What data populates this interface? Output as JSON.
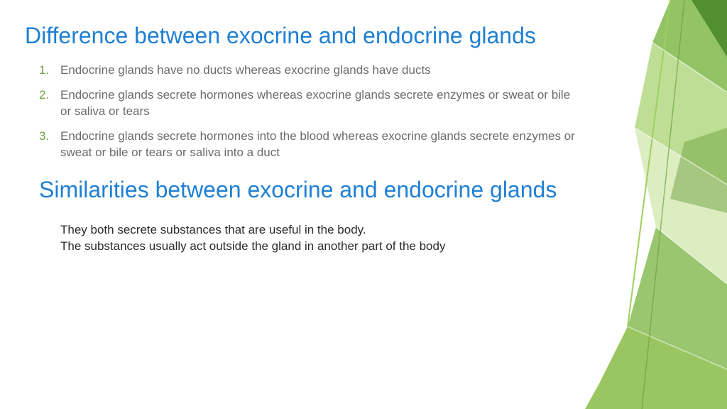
{
  "colors": {
    "title": "#1f7fd4",
    "list_number": "#6fa13e",
    "list_text": "#6b6b6b",
    "body_text": "#2b2b2b",
    "bg": "#ffffff",
    "deco_dark_green": "#4a8a2a",
    "deco_mid_green": "#7fb84a",
    "deco_light_green": "#a8d373",
    "deco_pale_green": "#cde6a8",
    "deco_line_green": "#9ecf5e"
  },
  "title1": "Difference between exocrine and endocrine glands",
  "differences": [
    "Endocrine glands have no ducts whereas exocrine glands have ducts",
    "Endocrine glands secrete hormones whereas exocrine glands secrete enzymes or sweat or bile or saliva or tears",
    "Endocrine glands secrete hormones into the blood whereas exocrine glands secrete enzymes or sweat or bile or tears or saliva into a duct"
  ],
  "title2": "Similarities between exocrine and endocrine glands",
  "similarities_line1": "They both secrete substances that are useful in the body.",
  "similarities_line2": "The substances usually act outside the gland in another part of the body"
}
